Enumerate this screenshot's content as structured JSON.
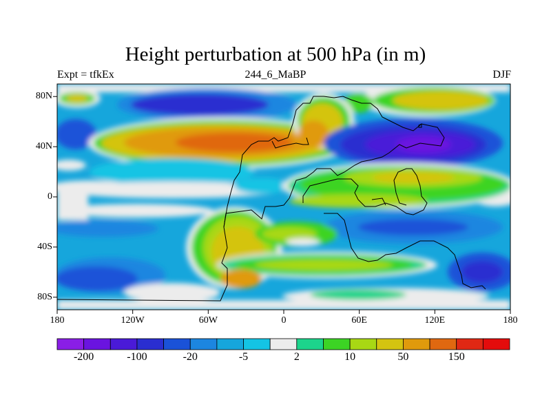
{
  "plot": {
    "title": "Height perturbation at 500 hPa (in m)",
    "left_label": "Expt = tfkEx",
    "center_label": "244_6_MaBP",
    "right_label": "DJF"
  },
  "axes": {
    "lat_ticks": [
      {
        "value": 80,
        "label": "80N"
      },
      {
        "value": 40,
        "label": "40N"
      },
      {
        "value": 0,
        "label": "0"
      },
      {
        "value": -40,
        "label": "40S"
      },
      {
        "value": -80,
        "label": "80S"
      }
    ],
    "lon_ticks": [
      {
        "value": -180,
        "label": "180"
      },
      {
        "value": -120,
        "label": "120W"
      },
      {
        "value": -60,
        "label": "60W"
      },
      {
        "value": 0,
        "label": "0"
      },
      {
        "value": 60,
        "label": "60E"
      },
      {
        "value": 120,
        "label": "120E"
      },
      {
        "value": 180,
        "label": "180"
      }
    ],
    "lat_range": [
      -90,
      90
    ],
    "lon_range": [
      -180,
      180
    ]
  },
  "colorbar": {
    "colors": [
      "#8a1ee6",
      "#6a14e0",
      "#4a1ad8",
      "#2a2ed0",
      "#1a52d8",
      "#1c86e0",
      "#16a6dc",
      "#14c4e4",
      "#ececec",
      "#1cd48c",
      "#3cd424",
      "#a8d814",
      "#d4c410",
      "#e09a0c",
      "#e06810",
      "#e02814",
      "#e40c0c"
    ],
    "labels": [
      {
        "boundary": 1,
        "text": "-200"
      },
      {
        "boundary": 3,
        "text": "-100"
      },
      {
        "boundary": 5,
        "text": "-20"
      },
      {
        "boundary": 7,
        "text": "-5"
      },
      {
        "boundary": 9,
        "text": "2"
      },
      {
        "boundary": 11,
        "text": "10"
      },
      {
        "boundary": 13,
        "text": "50"
      },
      {
        "boundary": 15,
        "text": "150"
      }
    ]
  }
}
